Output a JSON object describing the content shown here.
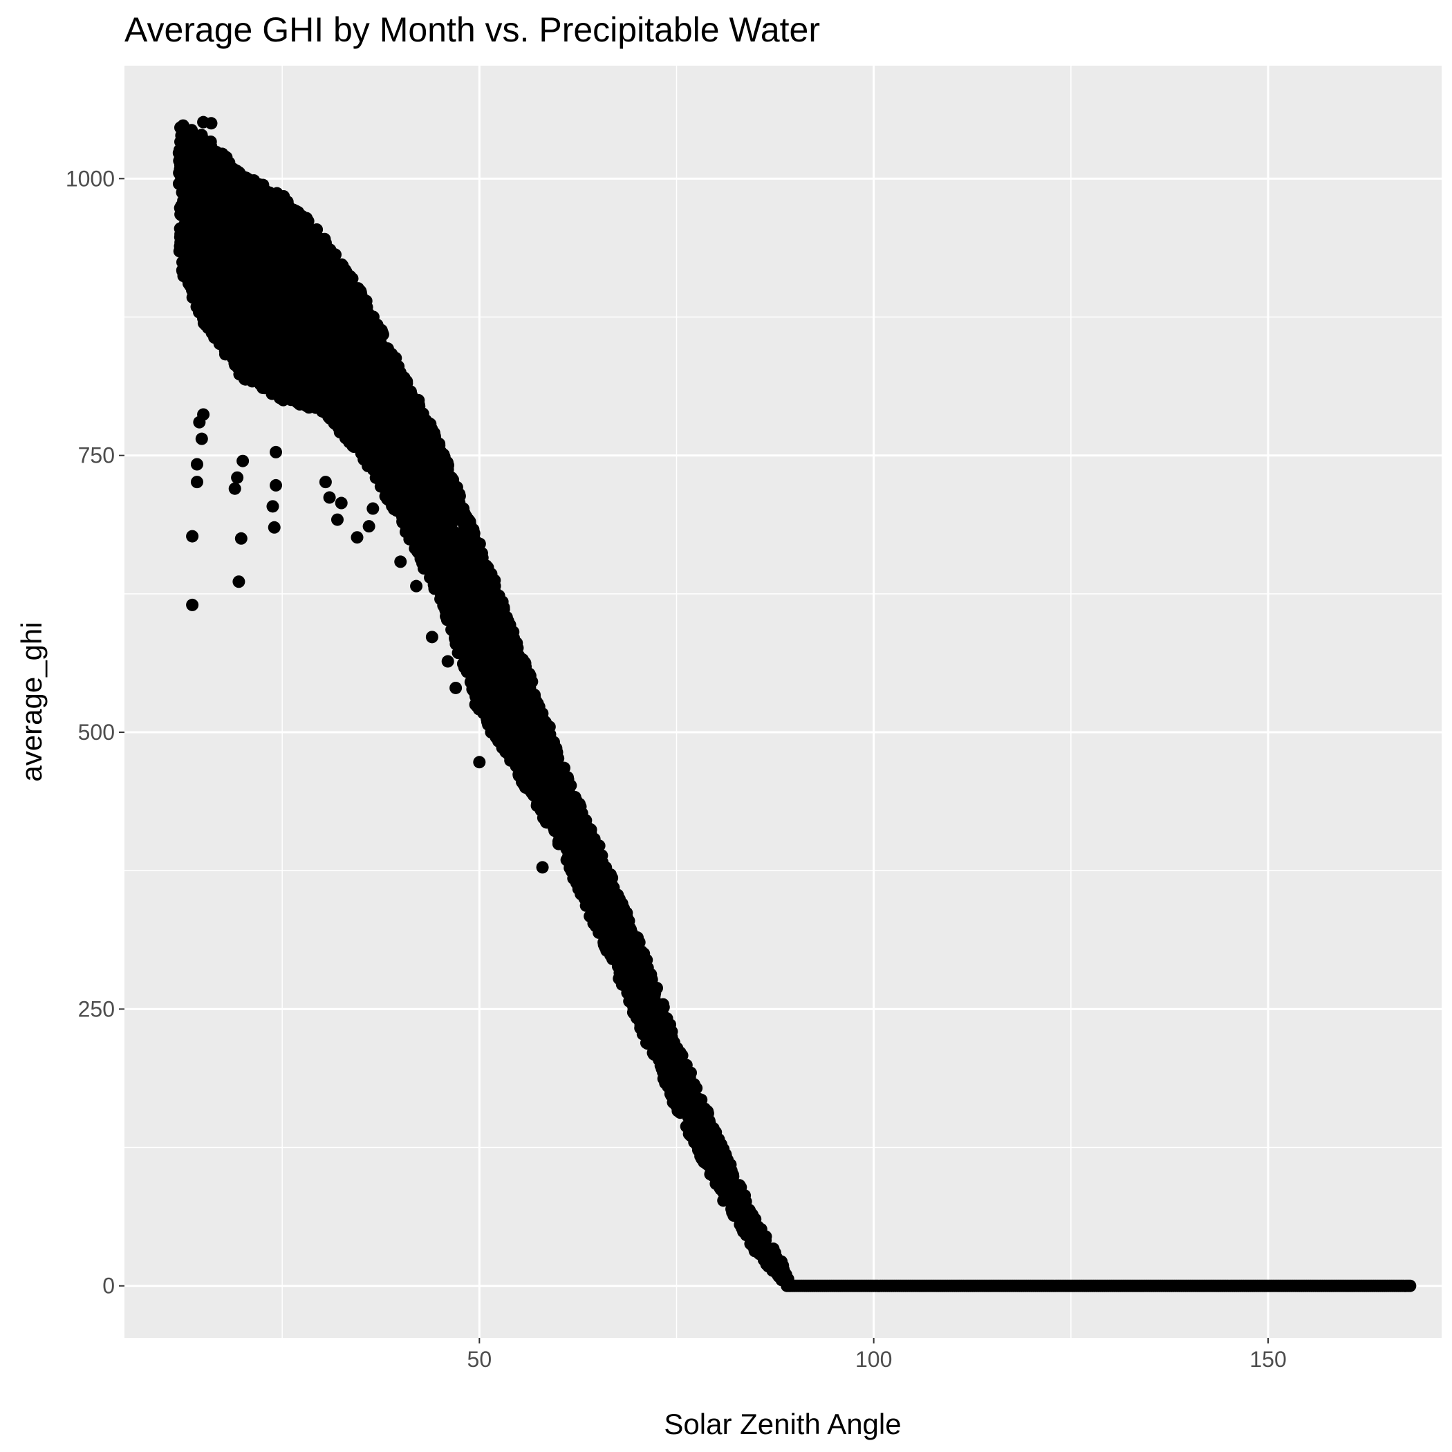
{
  "chart_data": {
    "type": "scatter",
    "title": "Average GHI by Month vs. Precipitable Water",
    "xlabel": "Solar Zenith Angle",
    "ylabel": "average_ghi",
    "xlim": [
      5,
      172
    ],
    "ylim": [
      -47,
      1102
    ],
    "x_ticks": [
      50,
      100,
      150
    ],
    "x_tick_labels": [
      "50",
      "100",
      "150"
    ],
    "y_ticks": [
      0,
      250,
      500,
      750,
      1000
    ],
    "y_tick_labels": [
      "0",
      "250",
      "500",
      "750",
      "1000"
    ],
    "grid": true,
    "point_color": "#000000",
    "panel_color": "#ebebeb",
    "grid_color": "#ffffff",
    "series": [
      {
        "description": "trend envelope: at each solar zenith angle, average_ghi lies between low and high",
        "envelope": [
          {
            "x": 12,
            "low": 920,
            "high": 1050
          },
          {
            "x": 15,
            "low": 870,
            "high": 1040
          },
          {
            "x": 20,
            "low": 820,
            "high": 1005
          },
          {
            "x": 25,
            "low": 800,
            "high": 985
          },
          {
            "x": 30,
            "low": 790,
            "high": 950
          },
          {
            "x": 35,
            "low": 750,
            "high": 900
          },
          {
            "x": 40,
            "low": 690,
            "high": 830
          },
          {
            "x": 45,
            "low": 620,
            "high": 760
          },
          {
            "x": 50,
            "low": 520,
            "high": 670
          },
          {
            "x": 55,
            "low": 460,
            "high": 580
          },
          {
            "x": 60,
            "low": 400,
            "high": 480
          },
          {
            "x": 65,
            "low": 320,
            "high": 400
          },
          {
            "x": 70,
            "low": 240,
            "high": 315
          },
          {
            "x": 75,
            "low": 160,
            "high": 220
          },
          {
            "x": 80,
            "low": 90,
            "high": 140
          },
          {
            "x": 85,
            "low": 30,
            "high": 60
          },
          {
            "x": 89,
            "low": 0,
            "high": 15
          },
          {
            "x": 90,
            "low": 0,
            "high": 0
          },
          {
            "x": 168,
            "low": 0,
            "high": 0
          }
        ]
      },
      {
        "description": "isolated outlier points",
        "points": [
          {
            "x": 13.6,
            "y": 615
          },
          {
            "x": 13.6,
            "y": 677
          },
          {
            "x": 14.2,
            "y": 726
          },
          {
            "x": 14.2,
            "y": 742
          },
          {
            "x": 14.8,
            "y": 765
          },
          {
            "x": 14.5,
            "y": 780
          },
          {
            "x": 15.0,
            "y": 787
          },
          {
            "x": 19.5,
            "y": 636
          },
          {
            "x": 19.8,
            "y": 675
          },
          {
            "x": 19.0,
            "y": 720
          },
          {
            "x": 19.3,
            "y": 730
          },
          {
            "x": 20.0,
            "y": 745
          },
          {
            "x": 24.0,
            "y": 685
          },
          {
            "x": 23.8,
            "y": 704
          },
          {
            "x": 24.2,
            "y": 723
          },
          {
            "x": 24.2,
            "y": 753
          },
          {
            "x": 32.0,
            "y": 692
          },
          {
            "x": 32.5,
            "y": 707
          },
          {
            "x": 31.0,
            "y": 712
          },
          {
            "x": 30.5,
            "y": 726
          },
          {
            "x": 34.5,
            "y": 676
          },
          {
            "x": 36.0,
            "y": 686
          },
          {
            "x": 36.5,
            "y": 702
          },
          {
            "x": 40.0,
            "y": 654
          },
          {
            "x": 42.0,
            "y": 632
          },
          {
            "x": 44.0,
            "y": 586
          },
          {
            "x": 46.0,
            "y": 564
          },
          {
            "x": 47.0,
            "y": 540
          },
          {
            "x": 50.0,
            "y": 473
          },
          {
            "x": 49.5,
            "y": 525
          },
          {
            "x": 51.5,
            "y": 500
          },
          {
            "x": 55.5,
            "y": 456
          },
          {
            "x": 58.0,
            "y": 378
          },
          {
            "x": 61.5,
            "y": 380
          },
          {
            "x": 62.5,
            "y": 366
          },
          {
            "x": 65.5,
            "y": 333
          },
          {
            "x": 69.0,
            "y": 303
          },
          {
            "x": 72.0,
            "y": 237
          },
          {
            "x": 75.0,
            "y": 196
          },
          {
            "x": 15.0,
            "y": 1051
          },
          {
            "x": 16.0,
            "y": 1050
          },
          {
            "x": 12.5,
            "y": 1045
          }
        ]
      }
    ]
  }
}
